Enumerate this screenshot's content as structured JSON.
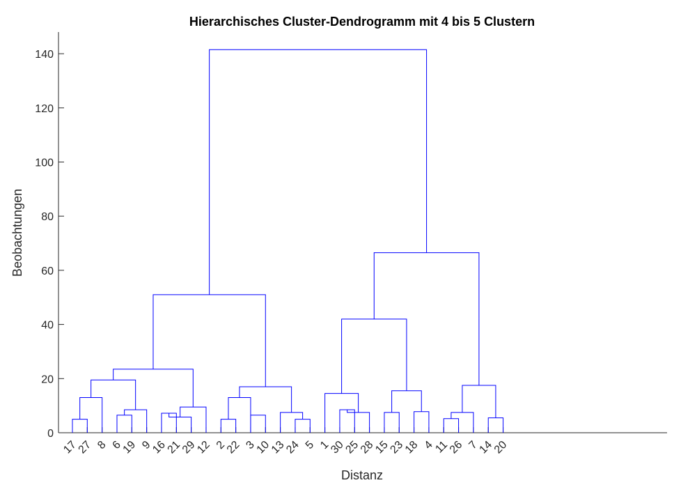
{
  "chart_data": {
    "type": "dendrogram",
    "title": "Hierarchisches Cluster-Dendrogramm mit 4 bis 5 Clustern",
    "xlabel": "Distanz",
    "ylabel": "Beobachtungen",
    "ylim": [
      0,
      148
    ],
    "yticks": [
      0,
      20,
      40,
      60,
      80,
      100,
      120,
      140
    ],
    "line_color": "#0000ff",
    "leaf_order": [
      "17",
      "27",
      "8",
      "6",
      "19",
      "9",
      "16",
      "21",
      "29",
      "12",
      "2",
      "22",
      "3",
      "10",
      "13",
      "24",
      "5",
      "1",
      "30",
      "25",
      "28",
      "15",
      "23",
      "18",
      "4",
      "11",
      "26",
      "7",
      "14",
      "20"
    ],
    "merges": [
      {
        "id": "A1",
        "left": "17",
        "right": "27",
        "height": 5.0
      },
      {
        "id": "A2",
        "left": "A1",
        "right": "8",
        "height": 13.0
      },
      {
        "id": "B1",
        "left": "6",
        "right": "19",
        "height": 6.5
      },
      {
        "id": "B2",
        "left": "B1",
        "right": "9",
        "height": 8.5
      },
      {
        "id": "L1",
        "left": "A2",
        "right": "B2",
        "height": 19.5
      },
      {
        "id": "C1",
        "left": "16",
        "right": "21",
        "height": 7.2
      },
      {
        "id": "C2",
        "left": "C1",
        "right": "29",
        "height": 5.8
      },
      {
        "id": "C3",
        "left": "C2",
        "right": "12",
        "height": 9.5
      },
      {
        "id": "L2",
        "left": "L1",
        "right": "C3",
        "height": 23.5
      },
      {
        "id": "D1",
        "left": "2",
        "right": "22",
        "height": 5.0
      },
      {
        "id": "D2",
        "left": "D1",
        "right": "3",
        "height": 13.0
      },
      {
        "id": "E1",
        "left": "3",
        "right": "10",
        "height": 6.5
      },
      {
        "id": "F1",
        "left": "24",
        "right": "5",
        "height": 5.0
      },
      {
        "id": "F2",
        "left": "13",
        "right": "F1",
        "height": 7.5
      },
      {
        "id": "L3",
        "left": "D2",
        "right": "F2",
        "height": 17.0
      },
      {
        "id": "L4",
        "left": "L2",
        "right": "L3",
        "height": 51.0
      },
      {
        "id": "G1",
        "left": "30",
        "right": "25",
        "height": 8.5
      },
      {
        "id": "G2",
        "left": "G1",
        "right": "28",
        "height": 7.5
      },
      {
        "id": "G3",
        "left": "1",
        "right": "G2",
        "height": 14.5
      },
      {
        "id": "H1",
        "left": "15",
        "right": "23",
        "height": 7.5
      },
      {
        "id": "H2",
        "left": "18",
        "right": "4",
        "height": 7.8
      },
      {
        "id": "H3",
        "left": "H1",
        "right": "H2",
        "height": 15.5
      },
      {
        "id": "R1",
        "left": "G3",
        "right": "H3",
        "height": 42.0
      },
      {
        "id": "I1",
        "left": "11",
        "right": "26",
        "height": 5.2
      },
      {
        "id": "I2",
        "left": "I1",
        "right": "7",
        "height": 7.5
      },
      {
        "id": "I3",
        "left": "14",
        "right": "20",
        "height": 5.5
      },
      {
        "id": "I4",
        "left": "I2",
        "right": "I3",
        "height": 17.5
      },
      {
        "id": "R2",
        "left": "R1",
        "right": "I4",
        "height": 66.5
      },
      {
        "id": "ROOT",
        "left": "L4",
        "right": "R2",
        "height": 141.5
      }
    ]
  }
}
